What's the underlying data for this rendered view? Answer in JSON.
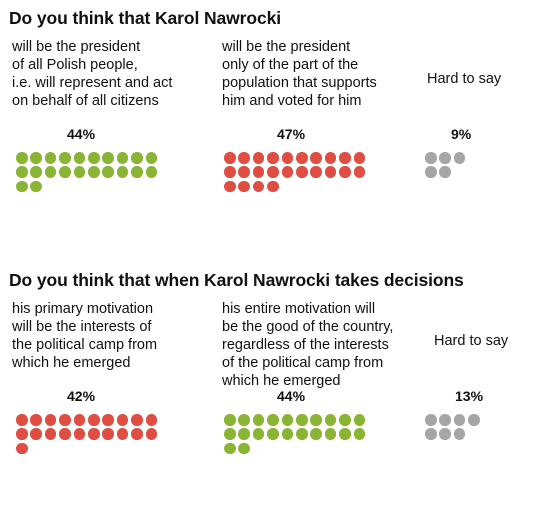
{
  "chart_data": [
    {
      "type": "waffle",
      "title": "Do you think that Karol Nawrocki",
      "categories": [
        "will be the president\nof all Polish people,\ni.e. will represent and act\non behalf of all citizens",
        "will be the president\nonly of the part of the\npopulation that supports\nhim and voted for him",
        "Hard to say"
      ],
      "values": [
        44,
        47,
        9
      ],
      "value_labels": [
        "44%",
        "47%",
        "9%"
      ],
      "colors": [
        "#8ab534",
        "#e04e43",
        "#a6a6a6"
      ]
    },
    {
      "type": "waffle",
      "title": "Do you think that when Karol Nawrocki takes decisions",
      "categories": [
        "his primary motivation\nwill be the interests of\nthe political camp from\nwhich he emerged",
        "his entire motivation will\nbe the good of the country,\nregardless of the interests\nof the political camp from\nwhich he emerged",
        "Hard to say"
      ],
      "values": [
        42,
        44,
        13
      ],
      "value_labels": [
        "42%",
        "44%",
        "13%"
      ],
      "colors": [
        "#e04e43",
        "#8ab534",
        "#a6a6a6"
      ]
    }
  ]
}
